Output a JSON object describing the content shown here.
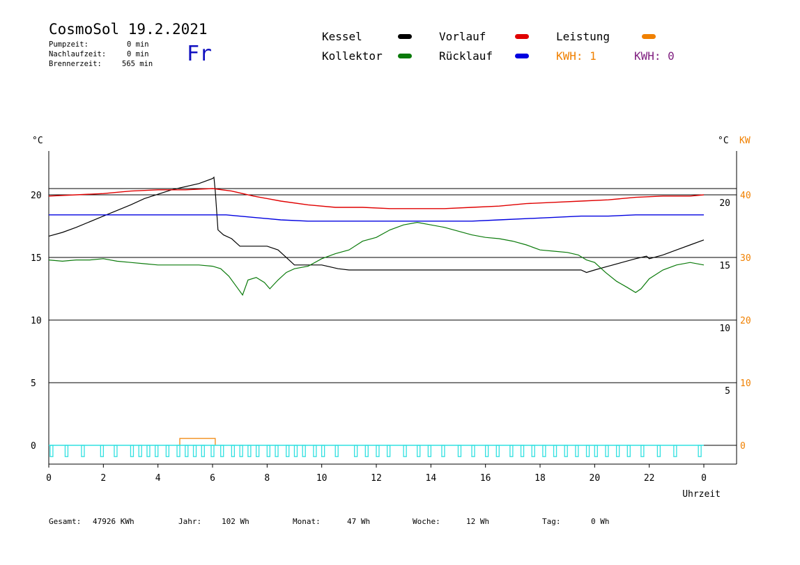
{
  "header": {
    "title": "CosmoSol 19.2.2021",
    "day": "Fr",
    "pump_label": "Pumpzeit:",
    "pump_value": "0 min",
    "after_label": "Nachlaufzeit:",
    "after_value": "0 min",
    "burner_label": "Brennerzeit:",
    "burner_value": "565 min"
  },
  "legend": {
    "kessel": "Kessel",
    "kollektor": "Kollektor",
    "vorlauf": "Vorlauf",
    "ruecklauf": "Rücklauf",
    "leistung": "Leistung",
    "kwh1": "KWH: 1",
    "kwh0": "KWH: 0"
  },
  "footer": {
    "gesamt_label": "Gesamt:",
    "gesamt_value": "47926 KWh",
    "jahr_label": "Jahr:",
    "jahr_value": "102 Wh",
    "monat_label": "Monat:",
    "monat_value": "47 Wh",
    "woche_label": "Woche:",
    "woche_value": "12 Wh",
    "tag_label": "Tag:",
    "tag_value": "0 Wh"
  },
  "colors": {
    "kessel": "#000000",
    "kollektor": "#0a7a0a",
    "vorlauf": "#e00000",
    "ruecklauf": "#0000e0",
    "leistung": "#f08000",
    "pump": "#30e0e0",
    "kwh0": "#802080",
    "grid": "#000000"
  },
  "chart_data": {
    "type": "line",
    "xlabel": "Uhrzeit",
    "ylabel_left": "°C",
    "ylabel_right": "°C",
    "ylabel_right2": "KW",
    "xlim": [
      0,
      24
    ],
    "xticks": [
      "0",
      "2",
      "4",
      "6",
      "8",
      "10",
      "12",
      "14",
      "16",
      "18",
      "20",
      "22",
      "0"
    ],
    "ylim_left": [
      -1.5,
      23.5
    ],
    "yticks_left": [
      "0",
      "5",
      "10",
      "15",
      "20"
    ],
    "yticks_right": [
      "5",
      "10",
      "15",
      "20"
    ],
    "yticks_right2": [
      "0",
      "10",
      "20",
      "30",
      "40"
    ],
    "grid": "horizontal",
    "series": [
      {
        "name": "Kessel",
        "x": [
          0,
          0.5,
          1,
          2,
          3,
          3.5,
          4.5,
          5.5,
          6.0,
          6.05,
          6.1,
          6.2,
          6.4,
          6.7,
          7.0,
          7.5,
          8.0,
          8.4,
          8.8,
          9.0,
          10,
          10.6,
          11.0,
          12,
          14,
          16,
          18,
          19.5,
          19.7,
          20,
          20.5,
          21,
          21.5,
          21.9,
          22.0,
          22.5,
          23,
          23.5,
          24
        ],
        "values": [
          16.7,
          17.0,
          17.4,
          18.3,
          19.2,
          19.7,
          20.4,
          20.9,
          21.3,
          21.4,
          20.3,
          17.2,
          16.8,
          16.5,
          15.9,
          15.9,
          15.9,
          15.6,
          14.8,
          14.4,
          14.4,
          14.1,
          14.0,
          14.0,
          14.0,
          14.0,
          14.0,
          14.0,
          13.8,
          14.0,
          14.3,
          14.6,
          14.9,
          15.1,
          14.9,
          15.2,
          15.6,
          16.0,
          16.4
        ]
      },
      {
        "name": "Kollektor",
        "x": [
          0,
          0.5,
          1,
          1.5,
          2,
          2.5,
          3,
          3.5,
          4,
          4.5,
          5,
          5.5,
          6,
          6.3,
          6.6,
          6.9,
          7.1,
          7.3,
          7.6,
          7.9,
          8.1,
          8.4,
          8.7,
          9.0,
          9.5,
          10,
          10.5,
          11,
          11.5,
          12,
          12.5,
          13,
          13.5,
          14,
          14.5,
          15,
          15.5,
          16,
          16.5,
          17,
          17.5,
          18,
          18.5,
          19,
          19.4,
          19.7,
          20,
          20.4,
          20.8,
          21.2,
          21.5,
          21.7,
          22.0,
          22.5,
          23,
          23.5,
          24
        ],
        "values": [
          14.8,
          14.7,
          14.8,
          14.8,
          14.9,
          14.7,
          14.6,
          14.5,
          14.4,
          14.4,
          14.4,
          14.4,
          14.3,
          14.1,
          13.5,
          12.6,
          12.0,
          13.2,
          13.4,
          13.0,
          12.5,
          13.2,
          13.8,
          14.1,
          14.3,
          14.9,
          15.3,
          15.6,
          16.3,
          16.6,
          17.2,
          17.6,
          17.8,
          17.6,
          17.4,
          17.1,
          16.8,
          16.6,
          16.5,
          16.3,
          16.0,
          15.6,
          15.5,
          15.4,
          15.2,
          14.8,
          14.6,
          13.8,
          13.1,
          12.6,
          12.2,
          12.5,
          13.3,
          14.0,
          14.4,
          14.6,
          14.4
        ]
      },
      {
        "name": "Vorlauf",
        "x": [
          0,
          1,
          2,
          3,
          4,
          5,
          6,
          6.7,
          7.5,
          8.5,
          9.5,
          10.5,
          11.5,
          12.5,
          13.5,
          14.5,
          15.5,
          16.5,
          17.5,
          18.5,
          19.5,
          20.5,
          21.5,
          22.5,
          23.5,
          24
        ],
        "values": [
          19.9,
          20.0,
          20.1,
          20.3,
          20.4,
          20.4,
          20.5,
          20.3,
          19.9,
          19.5,
          19.2,
          19.0,
          19.0,
          18.9,
          18.9,
          18.9,
          19.0,
          19.1,
          19.3,
          19.4,
          19.5,
          19.6,
          19.8,
          19.9,
          19.9,
          20.0
        ]
      },
      {
        "name": "Rücklauf",
        "x": [
          0,
          2,
          4,
          6,
          6.5,
          7.5,
          8.5,
          9.5,
          10.5,
          11.5,
          12.5,
          13.5,
          14.5,
          15.5,
          16.5,
          17.5,
          18.5,
          19.5,
          20.5,
          21.5,
          22.5,
          23.5,
          24
        ],
        "values": [
          18.4,
          18.4,
          18.4,
          18.4,
          18.4,
          18.2,
          18.0,
          17.9,
          17.9,
          17.9,
          17.9,
          17.9,
          17.9,
          17.9,
          18.0,
          18.1,
          18.2,
          18.3,
          18.3,
          18.4,
          18.4,
          18.4,
          18.4
        ]
      },
      {
        "name": "Leistung",
        "x": [
          4.8,
          4.8,
          6.1,
          6.1
        ],
        "values": [
          0,
          0.55,
          0.55,
          0
        ]
      }
    ],
    "pump_pulses_hours": [
      0.1,
      0.65,
      1.25,
      1.95,
      2.45,
      3.05,
      3.35,
      3.65,
      3.95,
      4.35,
      4.75,
      5.05,
      5.35,
      5.65,
      6.0,
      6.35,
      6.75,
      7.05,
      7.35,
      7.65,
      8.05,
      8.35,
      8.75,
      9.05,
      9.35,
      9.75,
      10.05,
      10.55,
      11.25,
      11.65,
      12.05,
      12.45,
      13.05,
      13.55,
      13.95,
      14.45,
      15.05,
      15.55,
      16.05,
      16.45,
      16.95,
      17.35,
      17.75,
      18.15,
      18.55,
      18.95,
      19.35,
      19.75,
      20.05,
      20.45,
      20.85,
      21.25,
      21.75,
      22.35,
      22.95,
      23.85
    ]
  }
}
